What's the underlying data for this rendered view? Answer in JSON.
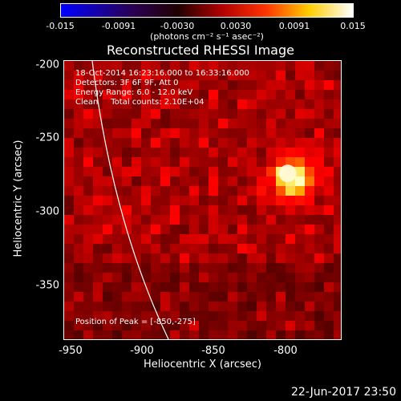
{
  "colorbar": {
    "ticks": [
      "-0.015",
      "-0.0091",
      "-0.0030",
      "0.0030",
      "0.0091",
      "0.015"
    ],
    "tick_fractions": [
      0,
      0.2,
      0.4,
      0.6,
      0.8,
      1
    ],
    "units": "(photons cm⁻² s⁻¹ asec⁻²)",
    "colors": [
      "#0000ff",
      "#000000",
      "#ff0000",
      "#ffff00",
      "#ffffff"
    ]
  },
  "title": "Reconstructed RHESSI Image",
  "info": {
    "line1": "18-Oct-2014 16:23:16.000 to 16:33:16.000",
    "line2": "Detectors: 3F 6F 9F, Att 0",
    "line3": "Energy Range: 6.0 - 12.0 keV",
    "line4": "Clean     Total counts: 2.10E+04"
  },
  "peak_label": "Position of Peak = [-850,-275]",
  "axes": {
    "xlabel": "Heliocentric X (arcsec)",
    "ylabel": "Heliocentric Y (arcsec)",
    "xticks": [
      "-950",
      "-900",
      "-850",
      "-800"
    ],
    "xtick_values": [
      -950,
      -900,
      -850,
      -800
    ],
    "yticks": [
      "-200",
      "-250",
      "-300",
      "-350"
    ],
    "ytick_values": [
      -200,
      -250,
      -300,
      -350
    ],
    "xlim": [
      -955,
      -825
    ],
    "ylim": [
      -390,
      -197
    ]
  },
  "peak": {
    "x": -850,
    "y": -275
  },
  "timestamp": "22-Jun-2017 23:50"
}
